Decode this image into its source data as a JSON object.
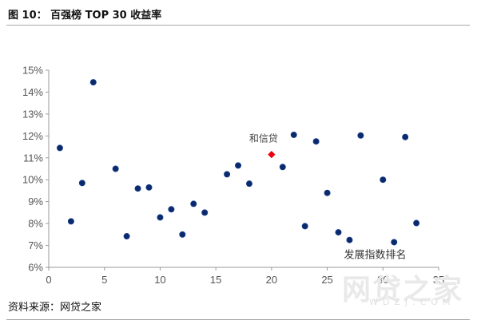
{
  "figure": {
    "title": "图 10： 百强榜 TOP 30 收益率",
    "source": "资料来源：网贷之家",
    "watermark": "网贷之家",
    "watermark_sub": "WDZJ.COM"
  },
  "chart_data": {
    "type": "scatter",
    "title": "图 10： 百强榜 TOP 30 收益率",
    "xlabel": "发展指数排名",
    "ylabel": "",
    "xlim": [
      0,
      35
    ],
    "ylim": [
      6,
      15
    ],
    "xticks": [
      0,
      5,
      10,
      15,
      20,
      25,
      30,
      35
    ],
    "yticks": [
      6,
      7,
      8,
      9,
      10,
      11,
      12,
      13,
      14,
      15
    ],
    "ytick_suffix": "%",
    "grid": false,
    "marker_color": "#0b2a6b",
    "highlight_color": "#e8000b",
    "series": [
      {
        "points": [
          [
            1,
            11.45
          ],
          [
            2,
            8.1
          ],
          [
            3,
            9.85
          ],
          [
            4,
            14.45
          ],
          [
            6,
            10.5
          ],
          [
            7,
            7.42
          ],
          [
            8,
            9.6
          ],
          [
            9,
            9.65
          ],
          [
            10,
            8.28
          ],
          [
            11,
            8.65
          ],
          [
            12,
            7.5
          ],
          [
            13,
            8.9
          ],
          [
            14,
            8.5
          ],
          [
            16,
            10.25
          ],
          [
            17,
            10.65
          ],
          [
            18,
            9.82
          ],
          [
            21,
            10.58
          ],
          [
            22,
            12.05
          ],
          [
            23,
            7.88
          ],
          [
            24,
            11.75
          ],
          [
            25,
            9.4
          ],
          [
            26,
            7.6
          ],
          [
            27,
            7.25
          ],
          [
            28,
            12.02
          ],
          [
            30,
            10.0
          ],
          [
            31,
            7.15
          ],
          [
            32,
            11.95
          ],
          [
            33,
            8.02
          ]
        ]
      },
      {
        "name": "和信贷",
        "points": [
          [
            20,
            11.15
          ]
        ],
        "highlight": true
      }
    ]
  }
}
